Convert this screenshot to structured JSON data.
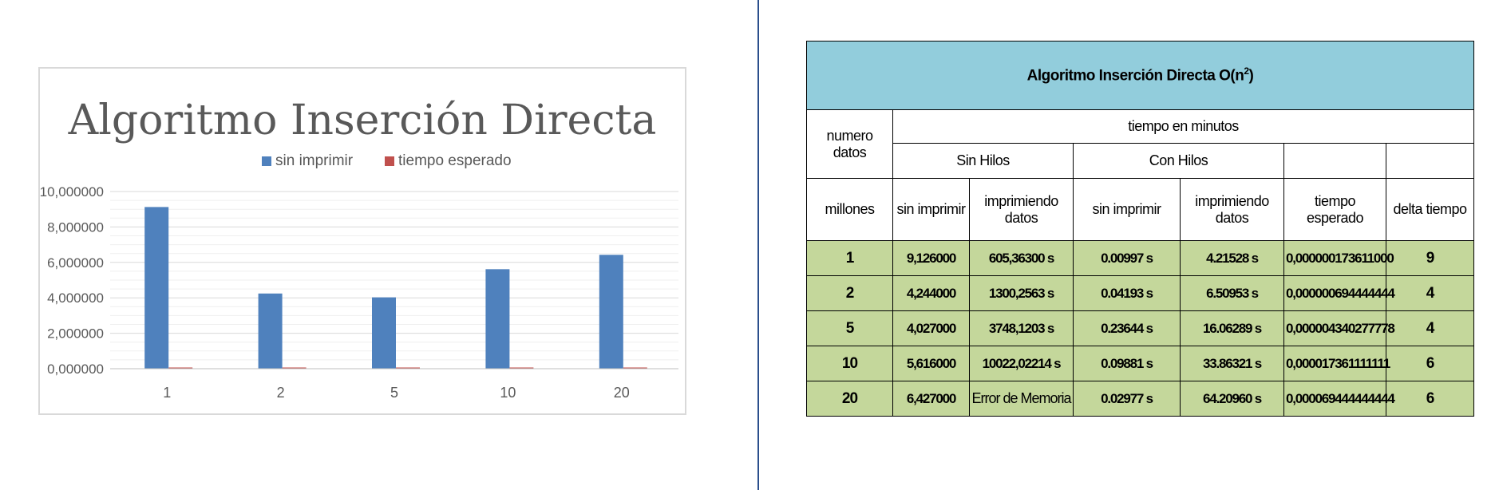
{
  "chart_data": {
    "type": "bar",
    "title": "Algoritmo Inserción Directa",
    "categories": [
      "1",
      "2",
      "5",
      "10",
      "20"
    ],
    "series": [
      {
        "name": "sin imprimir",
        "values": [
          9.126,
          4.244,
          4.027,
          5.616,
          6.427
        ]
      },
      {
        "name": "tiempo esperado",
        "values": [
          1.73611e-07,
          6.94444444e-07,
          4.340277778e-06,
          1.7361111111e-05,
          6.9444444444e-05
        ]
      }
    ],
    "yticks": [
      "0,000000",
      "2,000000",
      "4,000000",
      "6,000000",
      "8,000000",
      "10,000000"
    ],
    "ylim": [
      0,
      10
    ],
    "legend_position": "top",
    "grid": true,
    "colors": {
      "sin imprimir": "#4f81bd",
      "tiempo esperado": "#c0504d"
    }
  },
  "table": {
    "title_main": "Algoritmo Inserción Directa O(n",
    "title_sup": "2",
    "title_end": ")",
    "header_numero": "numero datos",
    "header_tiempo": "tiempo en minutos",
    "header_sin_hilos": "Sin Hilos",
    "header_con_hilos": "Con Hilos",
    "columns": [
      "millones",
      "sin imprimir",
      "imprimiendo datos",
      "sin imprimir",
      "imprimiendo datos",
      "tiempo esperado",
      "delta tiempo"
    ],
    "rows": [
      [
        "1",
        "9,126000",
        "605,36300 s",
        "0.00997 s",
        "4.21528 s",
        "0,000000173611000",
        "9"
      ],
      [
        "2",
        "4,244000",
        "1300,2563 s",
        "0.04193 s",
        "6.50953 s",
        "0,000000694444444",
        "4"
      ],
      [
        "5",
        "4,027000",
        "3748,1203 s",
        "0.23644 s",
        "16.06289 s",
        "0,000004340277778",
        "4"
      ],
      [
        "10",
        "5,616000",
        "10022,02214 s",
        "0.09881 s",
        "33.86321 s",
        "0,000017361111111",
        "6"
      ],
      [
        "20",
        "6,427000",
        "Error de Memoria",
        "0.02977 s",
        "64.20960 s",
        "0,000069444444444",
        "6"
      ]
    ]
  }
}
